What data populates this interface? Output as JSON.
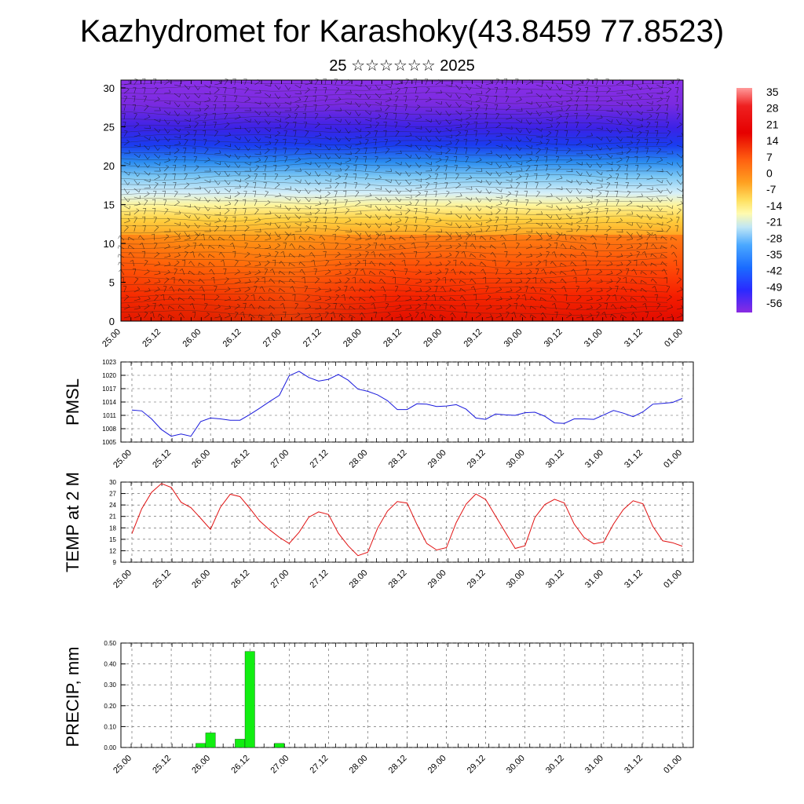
{
  "page": {
    "title": "Kazhydromet for Karashoky(43.8459 77.8523)",
    "subtitle": "25 ☆☆☆☆☆☆ 2025"
  },
  "colors": {
    "pmsl_line": "#1a1adc",
    "temp_line": "#e01010",
    "precip_bar": "#11ee11",
    "grid": "#555555"
  },
  "chart_data": [
    {
      "type": "heatmap",
      "x_ticks": [
        "25.00",
        "25.12",
        "26.00",
        "26.12",
        "27.00",
        "27.12",
        "28.00",
        "28.12",
        "29.00",
        "29.12",
        "30.00",
        "30.12",
        "31.00",
        "31.12",
        "01.00"
      ],
      "y_ticks": [
        "0",
        "5",
        "10",
        "15",
        "20",
        "25",
        "30"
      ],
      "ylim": [
        0,
        31
      ],
      "colorbar_labels": [
        "35",
        "28",
        "21",
        "14",
        "7",
        "0",
        "-7",
        "-14",
        "-21",
        "-28",
        "-35",
        "-42",
        "-49",
        "-56"
      ],
      "colorbar_stops": [
        "#8a2be2",
        "#2a2aff",
        "#4aa0ff",
        "#bfe6f5",
        "#fffba0",
        "#ffd24a",
        "#ff9b1a",
        "#ff4d0d",
        "#e60000",
        "#ff9a9a"
      ]
    },
    {
      "type": "line",
      "ylabel": "PMSL",
      "x_ticks": [
        "25.00",
        "25.12",
        "26.00",
        "26.12",
        "27.00",
        "27.12",
        "28.00",
        "28.12",
        "29.00",
        "29.12",
        "30.00",
        "30.12",
        "31.00",
        "31.12",
        "01.00"
      ],
      "y_ticks": [
        "1005",
        "1008",
        "1011",
        "1014",
        "1017",
        "1020",
        "1023"
      ],
      "ylim": [
        1005,
        1023
      ],
      "x_step_hours": 3,
      "values": [
        1012.2,
        1012.0,
        1010.2,
        1007.8,
        1006.3,
        1006.8,
        1006.3,
        1009.6,
        1010.4,
        1010.2,
        1009.9,
        1009.9,
        1011.2,
        1012.6,
        1014.1,
        1015.5,
        1019.9,
        1020.9,
        1019.5,
        1018.7,
        1019.1,
        1020.2,
        1018.9,
        1016.9,
        1016.4,
        1015.6,
        1014.3,
        1012.3,
        1012.3,
        1013.6,
        1013.5,
        1013.0,
        1013.1,
        1013.4,
        1012.4,
        1010.4,
        1010.1,
        1011.3,
        1011.1,
        1011.0,
        1011.6,
        1011.7,
        1010.8,
        1009.3,
        1009.2,
        1010.2,
        1010.2,
        1010.1,
        1011.1,
        1012.1,
        1011.5,
        1010.7,
        1011.8,
        1013.5,
        1013.7,
        1013.9,
        1014.8
      ]
    },
    {
      "type": "line",
      "ylabel": "TEMP at 2 M",
      "x_ticks": [
        "25.00",
        "25.12",
        "26.00",
        "26.12",
        "27.00",
        "27.12",
        "28.00",
        "28.12",
        "29.00",
        "29.12",
        "30.00",
        "30.12",
        "31.00",
        "31.12",
        "01.00"
      ],
      "y_ticks": [
        "9",
        "12",
        "15",
        "18",
        "21",
        "24",
        "27",
        "30"
      ],
      "ylim": [
        9,
        30
      ],
      "x_step_hours": 3,
      "values": [
        16.5,
        23.0,
        27.3,
        29.6,
        28.6,
        24.7,
        23.3,
        20.5,
        17.6,
        23.4,
        26.8,
        26.2,
        23.1,
        19.8,
        17.5,
        15.5,
        13.9,
        16.8,
        20.8,
        22.2,
        21.5,
        16.6,
        13.3,
        10.7,
        11.6,
        17.9,
        22.4,
        24.9,
        24.5,
        18.9,
        13.9,
        12.2,
        12.8,
        19.4,
        24.2,
        26.9,
        25.4,
        21.1,
        16.8,
        12.6,
        13.3,
        20.7,
        24.1,
        25.5,
        24.5,
        19.0,
        15.5,
        13.8,
        14.3,
        19.0,
        22.8,
        25.1,
        24.3,
        18.4,
        14.6,
        14.1,
        13.2
      ]
    },
    {
      "type": "bar",
      "ylabel": "PRECIP, mm",
      "x_ticks": [
        "25.00",
        "25.12",
        "26.00",
        "26.12",
        "27.00",
        "27.12",
        "28.00",
        "28.12",
        "29.00",
        "29.12",
        "30.00",
        "30.12",
        "31.00",
        "31.12",
        "01.00"
      ],
      "y_ticks": [
        "0.00",
        "0.10",
        "0.20",
        "0.30",
        "0.40",
        "0.50"
      ],
      "ylim": [
        0,
        0.5
      ],
      "x_step_hours": 3,
      "values": [
        0,
        0,
        0,
        0,
        0,
        0,
        0,
        0.02,
        0.07,
        0,
        0,
        0.04,
        0.46,
        0,
        0,
        0.02,
        0,
        0,
        0,
        0,
        0,
        0,
        0,
        0,
        0,
        0,
        0,
        0,
        0,
        0,
        0,
        0,
        0,
        0,
        0,
        0,
        0,
        0,
        0,
        0,
        0,
        0,
        0,
        0,
        0,
        0,
        0,
        0,
        0,
        0,
        0,
        0,
        0,
        0,
        0,
        0,
        0
      ]
    }
  ]
}
